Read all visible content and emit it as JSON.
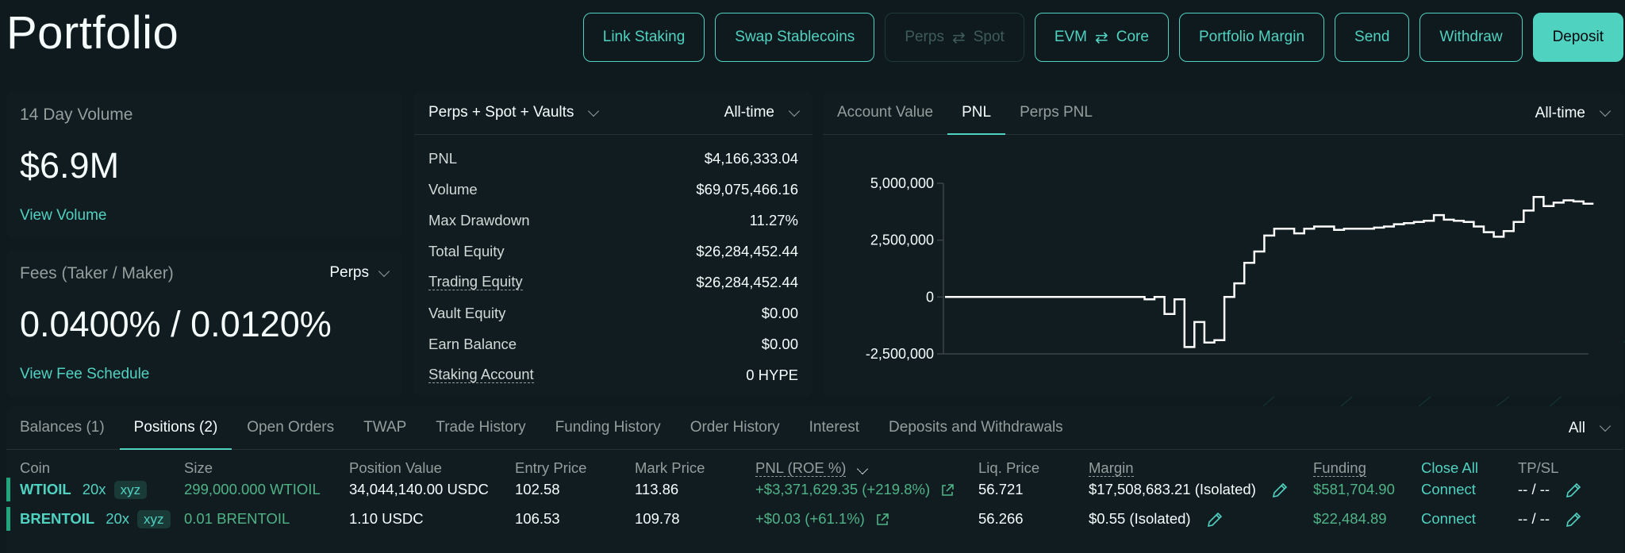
{
  "header": {
    "title": "Portfolio",
    "actions": [
      {
        "label": "Link Staking",
        "state": "default"
      },
      {
        "label": "Swap Stablecoins",
        "state": "default"
      },
      {
        "label_left": "Perps",
        "label_right": "Spot",
        "state": "disabled"
      },
      {
        "label_left": "EVM",
        "label_right": "Core",
        "state": "default"
      },
      {
        "label": "Portfolio Margin",
        "state": "default"
      },
      {
        "label": "Send",
        "state": "default"
      },
      {
        "label": "Withdraw",
        "state": "default"
      },
      {
        "label": "Deposit",
        "state": "primary"
      }
    ]
  },
  "volume_card": {
    "label": "14 Day Volume",
    "value": "$6.9M",
    "link": "View Volume"
  },
  "fees_card": {
    "label": "Fees (Taker / Maker)",
    "selector": "Perps",
    "value": "0.0400% / 0.0120%",
    "link": "View Fee Schedule"
  },
  "stats_card": {
    "scope": "Perps + Spot + Vaults",
    "range": "All-time",
    "rows": [
      {
        "key": "PNL",
        "value": "$4,166,333.04",
        "positive": true,
        "dashed": false
      },
      {
        "key": "Volume",
        "value": "$69,075,466.16",
        "dashed": false
      },
      {
        "key": "Max Drawdown",
        "value": "11.27%",
        "dashed": false
      },
      {
        "key": "Total Equity",
        "value": "$26,284,452.44",
        "dashed": false
      },
      {
        "key": "Trading Equity",
        "value": "$26,284,452.44",
        "dashed": true
      },
      {
        "key": "Vault Equity",
        "value": "$0.00",
        "dashed": false
      },
      {
        "key": "Earn Balance",
        "value": "$0.00",
        "dashed": false
      },
      {
        "key": "Staking Account",
        "value": "0 HYPE",
        "dashed": true
      }
    ]
  },
  "chart_card": {
    "tabs": [
      "Account Value",
      "PNL",
      "Perps PNL"
    ],
    "active_tab": "PNL",
    "range": "All-time"
  },
  "chart_data": {
    "type": "line",
    "step": true,
    "title": "",
    "xlabel": "",
    "ylabel": "",
    "ylim": [
      -2500000,
      5000000
    ],
    "yticks": [
      5000000,
      2500000,
      0,
      -2500000
    ],
    "ytick_labels": [
      "5,000,000",
      "2,500,000",
      "0",
      "-2,500,000"
    ],
    "line_color": "#ffffff",
    "series": [
      {
        "values": [
          0,
          0,
          0,
          0,
          0,
          0,
          0,
          0,
          0,
          0,
          0,
          0,
          0,
          0,
          0,
          0,
          0,
          0,
          0,
          0,
          0,
          0,
          0,
          0,
          0,
          0,
          0,
          0,
          0,
          0,
          0,
          0,
          0,
          0,
          0,
          0,
          0,
          0,
          0,
          0,
          -100000,
          -100000,
          0,
          0,
          -750000,
          -750000,
          -100000,
          -100000,
          -2200000,
          -2200000,
          -1100000,
          -1100000,
          -2000000,
          -2000000,
          -1900000,
          -1900000,
          0,
          0,
          600000,
          600000,
          1500000,
          1500000,
          2000000,
          2000000,
          2700000,
          2700000,
          3000000,
          3000000,
          3000000,
          3000000,
          2800000,
          2800000,
          3000000,
          3000000,
          3100000,
          3100000,
          3100000,
          3100000,
          2950000,
          2950000,
          3000000,
          3000000,
          3000000,
          3000000,
          3000000,
          3000000,
          3050000,
          3050000,
          3100000,
          3100000,
          3200000,
          3200000,
          3250000,
          3250000,
          3300000,
          3300000,
          3350000,
          3350000,
          3600000,
          3600000,
          3400000,
          3400000,
          3350000,
          3350000,
          3300000,
          3300000,
          3100000,
          3100000,
          2850000,
          2850000,
          2650000,
          2650000,
          2900000,
          2900000,
          3300000,
          3300000,
          3800000,
          3800000,
          4400000,
          4400000,
          4000000,
          4000000,
          4150000,
          4150000,
          4250000,
          4250000,
          4200000,
          4200000,
          4100000
        ]
      }
    ]
  },
  "bottom": {
    "tabs": [
      "Balances (1)",
      "Positions (2)",
      "Open Orders",
      "TWAP",
      "Trade History",
      "Funding History",
      "Order History",
      "Interest",
      "Deposits and Withdrawals"
    ],
    "active_tab": "Positions (2)",
    "filter": "All",
    "columns": [
      "Coin",
      "Size",
      "Position Value",
      "Entry Price",
      "Mark Price",
      "PNL (ROE %)",
      "Liq. Price",
      "Margin",
      "Funding",
      "Close All",
      "TP/SL"
    ],
    "positions": [
      {
        "coin": "WTIOIL",
        "leverage": "20x",
        "tag": "xyz",
        "size": "299,000.000 WTIOIL",
        "position_value": "34,044,140.00 USDC",
        "entry_price": "102.58",
        "mark_price": "113.86",
        "pnl": "+$3,371,629.35 (+219.8%)",
        "liq_price": "56.721",
        "margin": "$17,508,683.21 (Isolated)",
        "funding": "$581,704.90",
        "close": "Connect",
        "tpsl": "-- / --"
      },
      {
        "coin": "BRENTOIL",
        "leverage": "20x",
        "tag": "xyz",
        "size": "0.01 BRENTOIL",
        "position_value": "1.10 USDC",
        "entry_price": "106.53",
        "mark_price": "109.78",
        "pnl": "+$0.03 (+61.1%)",
        "liq_price": "56.266",
        "margin": "$0.55 (Isolated)",
        "funding": "$22,484.89",
        "close": "Connect",
        "tpsl": "-- / --"
      }
    ]
  },
  "colors": {
    "accent": "#50d2c1",
    "positive": "#1fa67d",
    "background": "#0f1a1e",
    "card": "#111c21"
  },
  "icons": {
    "swap": "swap-arrows-icon",
    "edit": "pencil-icon",
    "external": "external-link-icon",
    "dropdown": "chevron-down-icon"
  }
}
